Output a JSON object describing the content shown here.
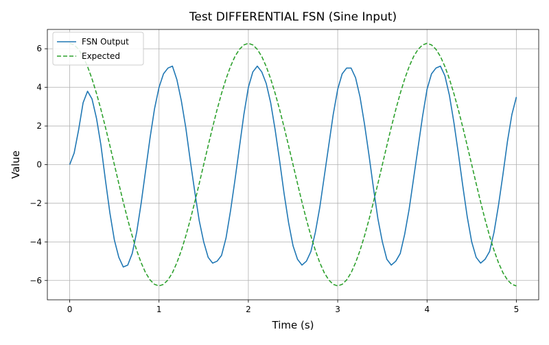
{
  "chart_data": {
    "type": "line",
    "title": "Test DIFFERENTIAL FSN (Sine Input)",
    "xlabel": "Time (s)",
    "ylabel": "Value",
    "xlim": [
      -0.25,
      5.25
    ],
    "ylim": [
      -7,
      7
    ],
    "xticks": [
      0,
      1,
      2,
      3,
      4,
      5
    ],
    "xtick_labels": [
      "0",
      "1",
      "2",
      "3",
      "4",
      "5"
    ],
    "yticks": [
      -6,
      -4,
      -2,
      0,
      2,
      4,
      6
    ],
    "ytick_labels": [
      "−6",
      "−4",
      "−2",
      "0",
      "2",
      "4",
      "6"
    ],
    "grid": true,
    "legend_position": "top-left",
    "series": [
      {
        "name": "FSN Output",
        "style": "solid",
        "color": "#1f77b4",
        "x": [
          0,
          0.05,
          0.1,
          0.15,
          0.2,
          0.25,
          0.3,
          0.35,
          0.4,
          0.45,
          0.5,
          0.55,
          0.6,
          0.65,
          0.7,
          0.75,
          0.8,
          0.85,
          0.9,
          0.95,
          1.0,
          1.05,
          1.1,
          1.15,
          1.2,
          1.25,
          1.3,
          1.35,
          1.4,
          1.45,
          1.5,
          1.55,
          1.6,
          1.65,
          1.7,
          1.75,
          1.8,
          1.85,
          1.9,
          1.95,
          2.0,
          2.05,
          2.1,
          2.15,
          2.2,
          2.25,
          2.3,
          2.35,
          2.4,
          2.45,
          2.5,
          2.55,
          2.6,
          2.65,
          2.7,
          2.75,
          2.8,
          2.85,
          2.9,
          2.95,
          3.0,
          3.05,
          3.1,
          3.15,
          3.2,
          3.25,
          3.3,
          3.35,
          3.4,
          3.45,
          3.5,
          3.55,
          3.6,
          3.65,
          3.7,
          3.75,
          3.8,
          3.85,
          3.9,
          3.95,
          4.0,
          4.05,
          4.1,
          4.15,
          4.2,
          4.25,
          4.3,
          4.35,
          4.4,
          4.45,
          4.5,
          4.55,
          4.6,
          4.65,
          4.7,
          4.75,
          4.8,
          4.85,
          4.9,
          4.95,
          5.0
        ],
        "y": [
          0.0,
          0.6,
          1.8,
          3.2,
          3.8,
          3.4,
          2.4,
          1.0,
          -0.8,
          -2.5,
          -3.9,
          -4.8,
          -5.3,
          -5.2,
          -4.6,
          -3.5,
          -2.0,
          -0.3,
          1.4,
          2.9,
          4.0,
          4.7,
          5.0,
          5.1,
          4.4,
          3.3,
          1.9,
          0.2,
          -1.4,
          -2.9,
          -4.0,
          -4.8,
          -5.1,
          -5.0,
          -4.7,
          -3.8,
          -2.4,
          -0.8,
          0.9,
          2.6,
          4.0,
          4.8,
          5.1,
          4.8,
          4.2,
          3.2,
          1.8,
          0.2,
          -1.5,
          -3.0,
          -4.2,
          -4.9,
          -5.2,
          -5.0,
          -4.5,
          -3.5,
          -2.2,
          -0.6,
          1.0,
          2.6,
          3.9,
          4.7,
          5.0,
          5.0,
          4.5,
          3.5,
          2.1,
          0.5,
          -1.2,
          -2.8,
          -4.0,
          -4.9,
          -5.2,
          -5.0,
          -4.6,
          -3.6,
          -2.3,
          -0.7,
          0.9,
          2.5,
          3.9,
          4.7,
          5.0,
          5.1,
          4.6,
          3.6,
          2.2,
          0.6,
          -1.1,
          -2.7,
          -4.0,
          -4.8,
          -5.1,
          -4.9,
          -4.5,
          -3.5,
          -2.1,
          -0.5,
          1.2,
          2.6,
          3.5
        ]
      },
      {
        "name": "Expected",
        "style": "dashed",
        "color": "#2ca02c",
        "x": [
          0,
          0.05,
          0.1,
          0.15,
          0.2,
          0.25,
          0.3,
          0.35,
          0.4,
          0.45,
          0.5,
          0.55,
          0.6,
          0.65,
          0.7,
          0.75,
          0.8,
          0.85,
          0.9,
          0.95,
          1.0,
          1.05,
          1.1,
          1.15,
          1.2,
          1.25,
          1.3,
          1.35,
          1.4,
          1.45,
          1.5,
          1.55,
          1.6,
          1.65,
          1.7,
          1.75,
          1.8,
          1.85,
          1.9,
          1.95,
          2.0,
          2.05,
          2.1,
          2.15,
          2.2,
          2.25,
          2.3,
          2.35,
          2.4,
          2.45,
          2.5,
          2.55,
          2.6,
          2.65,
          2.7,
          2.75,
          2.8,
          2.85,
          2.9,
          2.95,
          3.0,
          3.05,
          3.1,
          3.15,
          3.2,
          3.25,
          3.3,
          3.35,
          3.4,
          3.45,
          3.5,
          3.55,
          3.6,
          3.65,
          3.7,
          3.75,
          3.8,
          3.85,
          3.9,
          3.95,
          4.0,
          4.05,
          4.1,
          4.15,
          4.2,
          4.25,
          4.3,
          4.35,
          4.4,
          4.45,
          4.5,
          4.55,
          4.6,
          4.65,
          4.7,
          4.75,
          4.8,
          4.85,
          4.9,
          4.95,
          5.0
        ],
        "y": [
          6.28,
          6.2,
          5.97,
          5.6,
          5.08,
          4.44,
          3.69,
          2.85,
          1.94,
          0.98,
          0.0,
          -0.98,
          -1.94,
          -2.85,
          -3.69,
          -4.44,
          -5.08,
          -5.6,
          -5.97,
          -6.2,
          -6.28,
          -6.2,
          -5.97,
          -5.6,
          -5.08,
          -4.44,
          -3.69,
          -2.85,
          -1.94,
          -0.98,
          0.0,
          0.98,
          1.94,
          2.85,
          3.69,
          4.44,
          5.08,
          5.6,
          5.97,
          6.2,
          6.28,
          6.2,
          5.97,
          5.6,
          5.08,
          4.44,
          3.69,
          2.85,
          1.94,
          0.98,
          0.0,
          -0.98,
          -1.94,
          -2.85,
          -3.69,
          -4.44,
          -5.08,
          -5.6,
          -5.97,
          -6.2,
          -6.28,
          -6.2,
          -5.97,
          -5.6,
          -5.08,
          -4.44,
          -3.69,
          -2.85,
          -1.94,
          -0.98,
          0.0,
          0.98,
          1.94,
          2.85,
          3.69,
          4.44,
          5.08,
          5.6,
          5.97,
          6.2,
          6.28,
          6.2,
          5.97,
          5.6,
          5.08,
          4.44,
          3.69,
          2.85,
          1.94,
          0.98,
          0.0,
          -0.98,
          -1.94,
          -2.85,
          -3.69,
          -4.44,
          -5.08,
          -5.6,
          -5.97,
          -6.2,
          -6.28
        ]
      }
    ]
  }
}
